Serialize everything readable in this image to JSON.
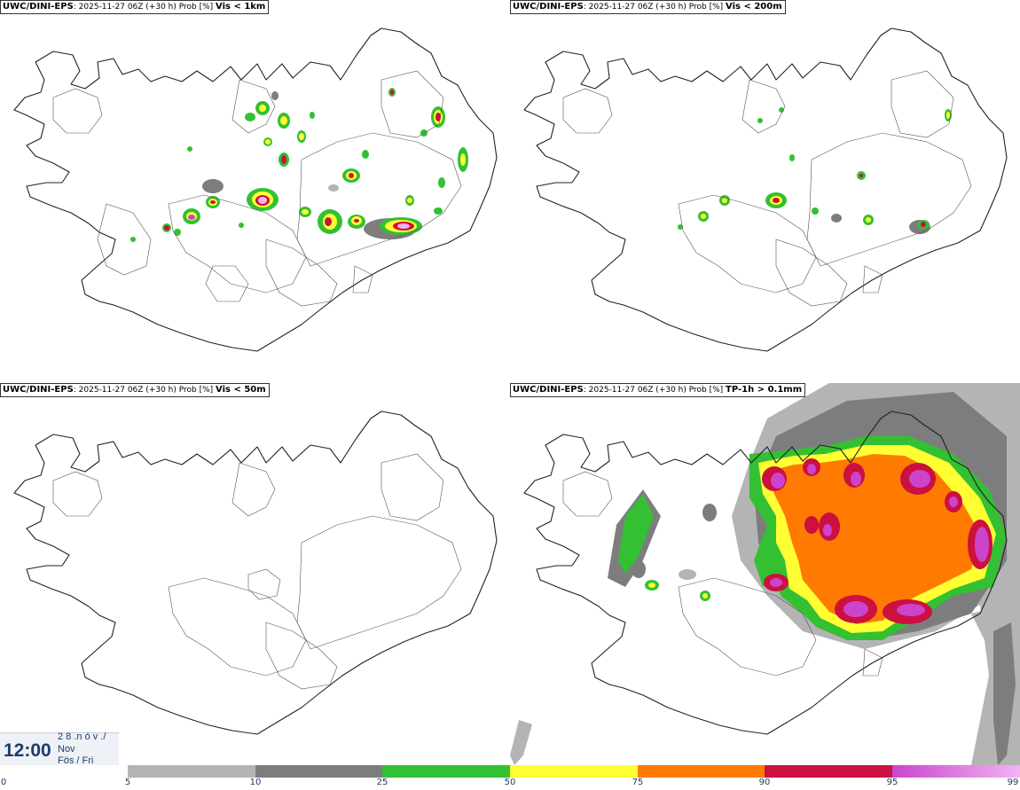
{
  "panels": [
    {
      "model": "UWC/DINI-EPS",
      "meta": ": 2025-11-27 06Z (+30 h) Prob [%] ",
      "param": "Vis < 1km"
    },
    {
      "model": "UWC/DINI-EPS",
      "meta": ": 2025-11-27 06Z (+30 h) Prob [%] ",
      "param": "Vis < 200m"
    },
    {
      "model": "UWC/DINI-EPS",
      "meta": ": 2025-11-27 06Z (+30 h) Prob [%] ",
      "param": "Vis < 50m"
    },
    {
      "model": "UWC/DINI-EPS",
      "meta": ": 2025-11-27 06Z (+30 h) Prob [%] ",
      "param": "TP-1h > 0.1mm"
    }
  ],
  "valid_time": {
    "time": "12:00",
    "top_partial": "2 8 .n ó v ./",
    "month": "Nov",
    "weekday": "Fös / Fri"
  },
  "colorbar": {
    "ticks": [
      "0",
      "5",
      "10",
      "25",
      "50",
      "75",
      "90",
      "95",
      "99"
    ],
    "colors": [
      "#ffffff",
      "#b4b4b4",
      "#7d7d7d",
      "#33c033",
      "#ffff33",
      "#ff7a00",
      "#cc1040",
      "#cc44cc",
      "#f2b3f2"
    ]
  }
}
